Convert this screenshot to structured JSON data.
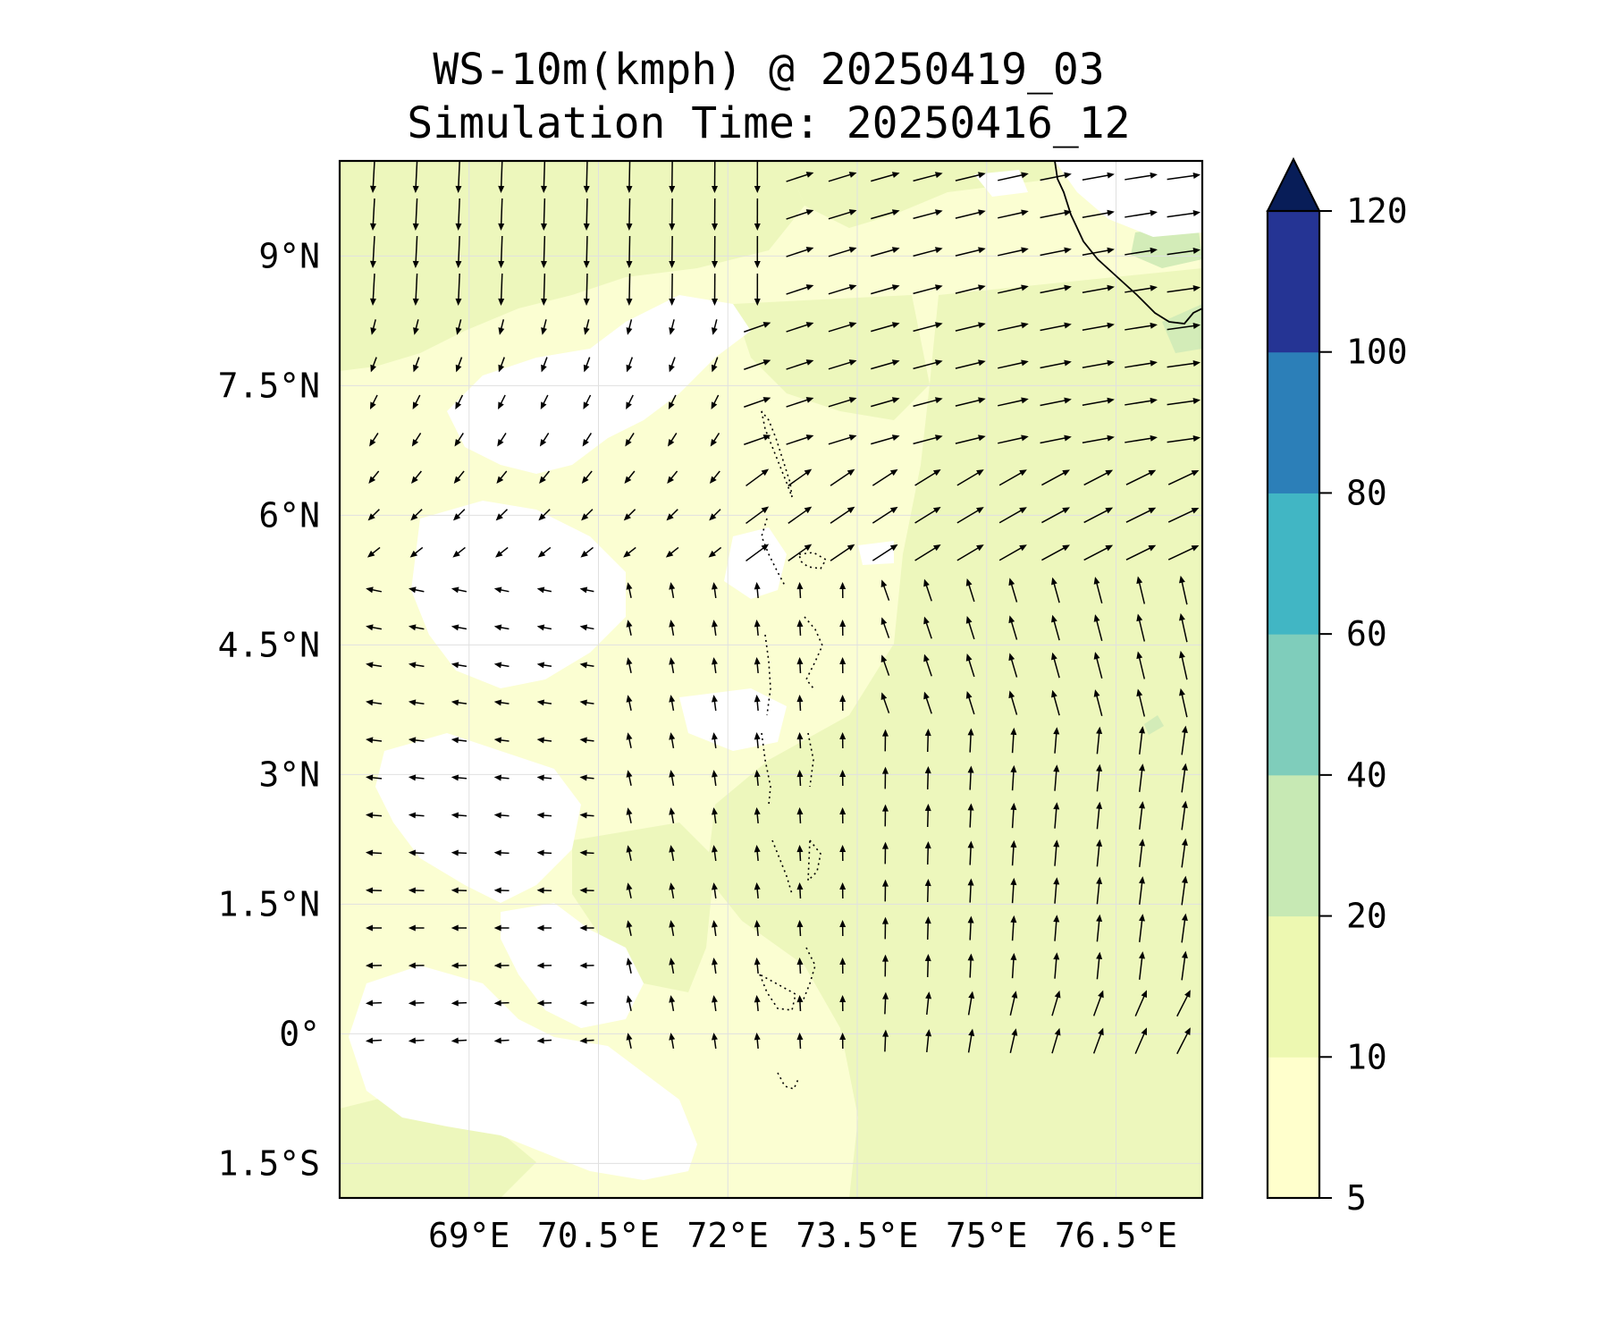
{
  "title": "WS-10m(kmph) @ 20250419_03",
  "subtitle": "Simulation Time: 20250416_12",
  "map": {
    "lon_range": [
      67.5,
      77.5
    ],
    "lat_range": [
      -1.9,
      10.1
    ],
    "lon_ticks": [
      {
        "value": 69.0,
        "label": "69°E"
      },
      {
        "value": 70.5,
        "label": "70.5°E"
      },
      {
        "value": 72.0,
        "label": "72°E"
      },
      {
        "value": 73.5,
        "label": "73.5°E"
      },
      {
        "value": 75.0,
        "label": "75°E"
      },
      {
        "value": 76.5,
        "label": "76.5°E"
      }
    ],
    "lat_ticks": [
      {
        "value": 9.0,
        "label": "9°N"
      },
      {
        "value": 7.5,
        "label": "7.5°N"
      },
      {
        "value": 6.0,
        "label": "6°N"
      },
      {
        "value": 4.5,
        "label": "4.5°N"
      },
      {
        "value": 3.0,
        "label": "3°N"
      },
      {
        "value": 1.5,
        "label": "1.5°N"
      },
      {
        "value": 0.0,
        "label": "0°"
      },
      {
        "value": -1.5,
        "label": "1.5°S"
      }
    ],
    "gridlines": true
  },
  "colorbar": {
    "levels": [
      5,
      10,
      20,
      40,
      60,
      80,
      100,
      120
    ],
    "labels": [
      "5",
      "10",
      "20",
      "40",
      "60",
      "80",
      "100",
      "120"
    ],
    "colors": [
      "#ffffcc",
      "#edf8b1",
      "#c7e9b4",
      "#7fcdbb",
      "#41b6c4",
      "#2c7fb8",
      "#253494"
    ],
    "extend_color": "#081d58",
    "extend": "max"
  },
  "field_colors": {
    "white": "#ffffff",
    "band_5_10": "#fbfed2",
    "band_10_20": "#edf7bc",
    "band_20_40": "#d3ecb8"
  }
}
